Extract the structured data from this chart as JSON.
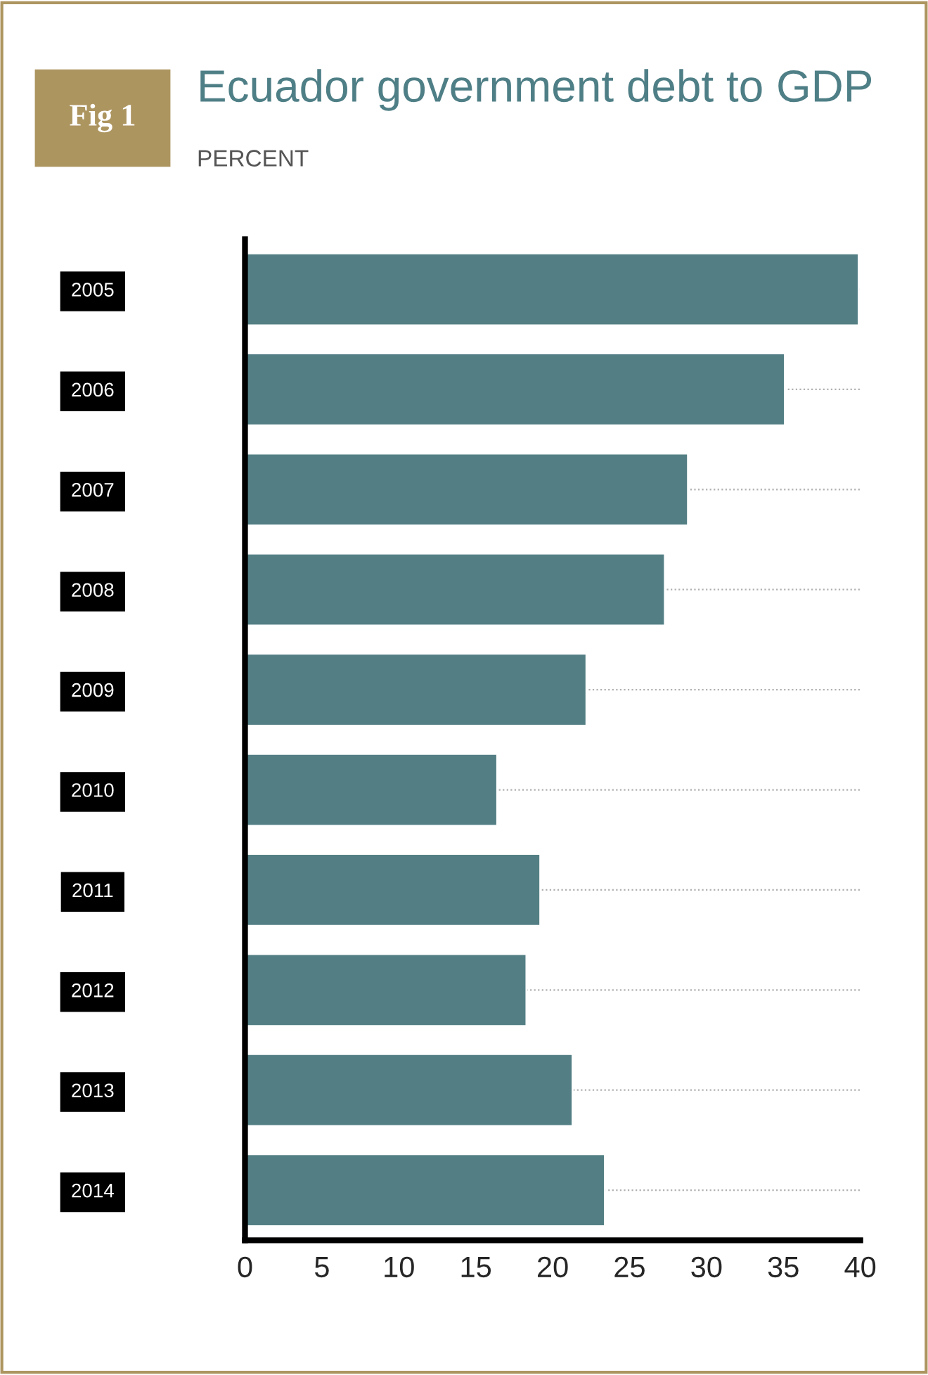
{
  "chart_data": {
    "type": "bar",
    "orientation": "horizontal",
    "title": "Ecuador government debt to GDP",
    "subtitle": "PERCENT",
    "annotations": [
      "Fig 1"
    ],
    "categories": [
      "2005",
      "2006",
      "2007",
      "2008",
      "2009",
      "2010",
      "2011",
      "2012",
      "2013",
      "2014"
    ],
    "values": [
      39.9,
      35.1,
      28.8,
      27.3,
      22.2,
      16.4,
      19.2,
      18.3,
      21.3,
      23.4
    ],
    "color": "#537f84",
    "xlim": [
      0,
      40
    ],
    "xticks": [
      0,
      5,
      10,
      15,
      20,
      25,
      30,
      35,
      40
    ],
    "grid": "y",
    "legend": false
  }
}
